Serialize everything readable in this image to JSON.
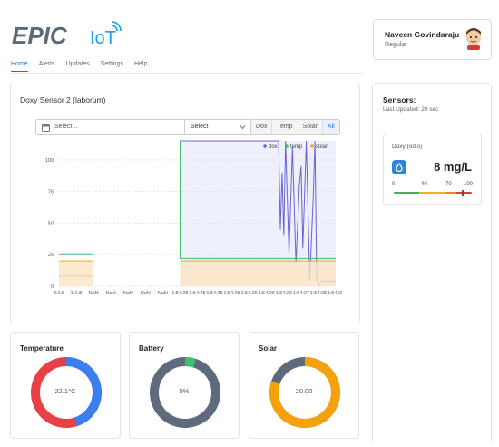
{
  "brand": {
    "text": "EPIC",
    "suffix": "IoT",
    "primary_color": "#5a6a78",
    "accent_color": "#1ba1e2"
  },
  "nav": {
    "items": [
      {
        "label": "Home",
        "active": true
      },
      {
        "label": "Alerts",
        "active": false
      },
      {
        "label": "Updates",
        "active": false
      },
      {
        "label": "Settings",
        "active": false
      },
      {
        "label": "Help",
        "active": false
      }
    ]
  },
  "user": {
    "name": "Naveen Govindaraju",
    "role": "Regular"
  },
  "main": {
    "title": "Doxy Sensor 2 (laborum)",
    "filter": {
      "placeholder": "Select...",
      "select_value": "Select"
    },
    "buttons": [
      "Dox",
      "Temp",
      "Solar",
      "All"
    ],
    "active_button": "All"
  },
  "chart_data": {
    "type": "line",
    "x_tick_labels": [
      "3:1:8",
      "3:1:8",
      "NaN",
      "NaN",
      "NaN",
      "NaN",
      "NaN",
      "1:54:25",
      "1:54:25",
      "1:54:25",
      "1:54:25",
      "1:54:26",
      "1:54:26",
      "1:54:26",
      "1:54:27",
      "1:54:28",
      "1:54:28"
    ],
    "y_ticks": [
      0,
      25,
      50,
      75,
      100
    ],
    "ylim": [
      0,
      115
    ],
    "grid": true,
    "legend_position": "top-right",
    "series": [
      {
        "name": "dox",
        "color": "#6b63d6",
        "segments": [
          {
            "x": [
              0,
              2
            ],
            "y": [
              8,
              8
            ]
          },
          {
            "x": [
              7,
              12.7,
              12.8,
              12.9,
              13.0,
              13.1,
              13.3,
              13.5,
              13.7,
              13.9,
              14.0,
              14.1,
              14.3,
              14.5,
              14.7,
              14.8,
              14.9,
              15.0,
              15.2,
              15.5,
              16.0
            ],
            "y": [
              115,
              115,
              45,
              90,
              40,
              115,
              25,
              110,
              18,
              80,
              95,
              30,
              115,
              4,
              70,
              115,
              5,
              0,
              4,
              4,
              4
            ]
          }
        ]
      },
      {
        "name": "temp",
        "color": "#3fbf6b",
        "segments": [
          {
            "x": [
              0,
              2
            ],
            "y": [
              25,
              25
            ]
          },
          {
            "x": [
              7,
              7,
              16
            ],
            "y": [
              115,
              22,
              22
            ]
          }
        ]
      },
      {
        "name": "solar",
        "color": "#f5a623",
        "area": true,
        "segments": [
          {
            "x": [
              0,
              2
            ],
            "y": [
              20,
              20
            ]
          },
          {
            "x": [
              7,
              16
            ],
            "y": [
              20,
              20
            ]
          }
        ]
      }
    ],
    "highlight_range": [
      7,
      16
    ]
  },
  "gauges": [
    {
      "title": "Temperature",
      "value_text": "22.1°C",
      "fraction": 0.45,
      "fill_color": "#3b7ef0",
      "rest_color": "#e84047"
    },
    {
      "title": "Battery",
      "value_text": "5%",
      "fraction": 0.05,
      "fill_color": "#3fbf6b",
      "rest_color": "#5e6b7d"
    },
    {
      "title": "Solar",
      "value_text": "20.00",
      "fraction": 0.8,
      "fill_color": "#f5a20a",
      "rest_color": "#5e6b7d"
    }
  ],
  "sensors": {
    "title": "Sensors:",
    "last_updated": "Last Updated: 20 sec",
    "doxy": {
      "name": "Doxy (odio)",
      "value": "8 mg/L",
      "scale_labels": [
        "0",
        "40",
        "70",
        "100"
      ],
      "level": 0.88
    }
  }
}
